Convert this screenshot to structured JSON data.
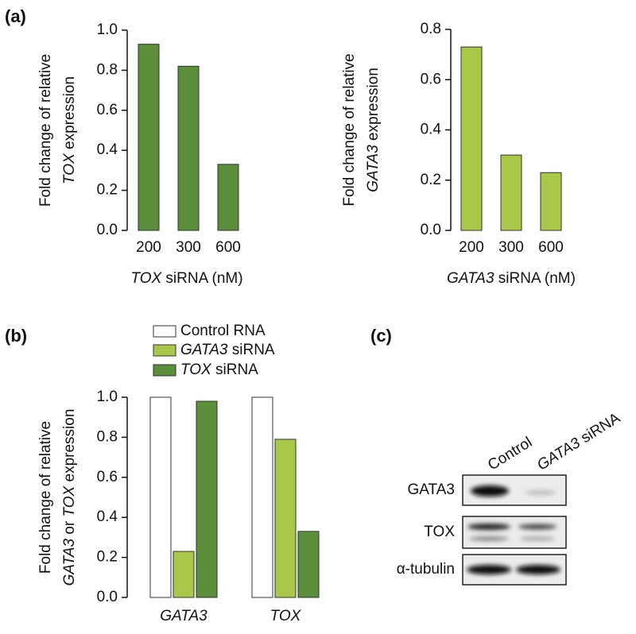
{
  "panels": [
    "(a)",
    "(b)",
    "(c)"
  ],
  "chart_data": [
    {
      "type": "bar",
      "categories": [
        "200",
        "300",
        "600"
      ],
      "values": [
        0.93,
        0.82,
        0.33
      ],
      "color": "#5b8f3b",
      "ylim": [
        0,
        1.0
      ],
      "yticks": [
        {
          "value": 0,
          "label": "0.0"
        },
        {
          "value": 0.2,
          "label": "0.2"
        },
        {
          "value": 0.4,
          "label": "0.4"
        },
        {
          "value": 0.6,
          "label": "0.6"
        },
        {
          "value": 0.8,
          "label": "0.8"
        },
        {
          "value": 1.0,
          "label": "1.0"
        }
      ],
      "ylabel": [
        "Fold change of relative",
        "TOX expression"
      ],
      "xlabel": "TOX siRNA (nM)",
      "italic_terms": [
        "TOX"
      ]
    },
    {
      "type": "bar",
      "categories": [
        "200",
        "300",
        "600"
      ],
      "values": [
        0.73,
        0.3,
        0.23
      ],
      "color": "#a9c84a",
      "ylim": [
        0,
        0.8
      ],
      "yticks": [
        {
          "value": 0,
          "label": "0.0"
        },
        {
          "value": 0.2,
          "label": "0.2"
        },
        {
          "value": 0.4,
          "label": "0.4"
        },
        {
          "value": 0.6,
          "label": "0.6"
        },
        {
          "value": 0.8,
          "label": "0.8"
        }
      ],
      "ylabel": [
        "Fold change of relative",
        "GATA3 expression"
      ],
      "xlabel": "GATA3 siRNA (nM)",
      "italic_terms": [
        "GATA3"
      ]
    },
    {
      "type": "grouped_bar",
      "categories": [
        "GATA3",
        "TOX"
      ],
      "series": [
        {
          "name": "Control RNA",
          "color": "#ffffff",
          "values": [
            1.0,
            1.0
          ]
        },
        {
          "name": "GATA3 siRNA",
          "color": "#a9c84a",
          "values": [
            0.23,
            0.79
          ]
        },
        {
          "name": "TOX siRNA",
          "color": "#5b8f3b",
          "values": [
            0.98,
            0.33
          ]
        }
      ],
      "ylim": [
        0,
        1.0
      ],
      "yticks": [
        {
          "value": 0,
          "label": "0.0"
        },
        {
          "value": 0.2,
          "label": "0.2"
        },
        {
          "value": 0.4,
          "label": "0.4"
        },
        {
          "value": 0.6,
          "label": "0.6"
        },
        {
          "value": 0.8,
          "label": "0.8"
        },
        {
          "value": 1.0,
          "label": "1.0"
        }
      ],
      "ylabel": [
        "Fold change of relative",
        "GATA3 or TOX expression"
      ],
      "italic_terms": [
        "GATA3",
        "TOX"
      ]
    }
  ],
  "blot": {
    "lanes": [
      "Control",
      "GATA3 siRNA"
    ],
    "rows": [
      "GATA3",
      "TOX",
      "α-tubulin"
    ],
    "lane_italic_terms": [
      "GATA3"
    ]
  }
}
